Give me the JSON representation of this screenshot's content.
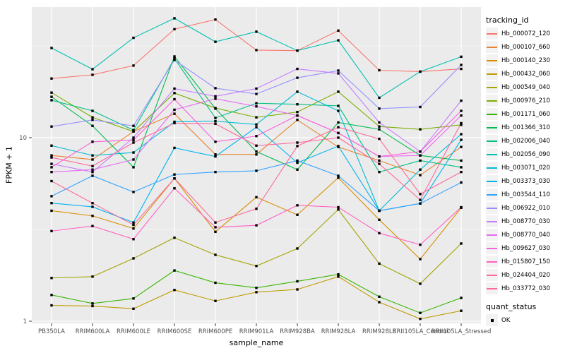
{
  "figure": {
    "background": "#FFFFFF",
    "panel_background": "#EBEBEB",
    "grid_color": "#FFFFFF",
    "tick_color": "#333333",
    "tick_label_color": "#4D4D4D",
    "point_color": "#000000"
  },
  "axes": {
    "x_title": "sample_name",
    "y_title": "FPKM + 1",
    "y_scale": "log10",
    "y_tick_labels": [
      "10",
      "1"
    ],
    "y_tick_values": [
      10,
      1
    ],
    "y_minor_values": [
      3.162,
      31.62
    ]
  },
  "legend": {
    "color_title": "tracking_id",
    "shape_title": "quant_status",
    "shape_items": [
      {
        "label": "OK"
      }
    ]
  },
  "chart_data": {
    "type": "line",
    "title": "",
    "xlabel": "sample_name",
    "ylabel": "FPKM + 1",
    "y_axis": {
      "scale": "log10",
      "ticks": [
        1,
        10
      ],
      "range_approx": [
        1,
        47
      ]
    },
    "grid": true,
    "legend_position": "right",
    "x_categories": [
      "PB350LA",
      "RRIM600LA",
      "RRIM600LE",
      "RRIM600SE",
      "RRIM600PE",
      "RRIM901LA",
      "RRIM928BA",
      "RRIM928LA",
      "RRIM928LE",
      "RRII105LA_Control",
      "RRII105LA_Stressed"
    ],
    "series": [
      {
        "name": "Hb_000072_120",
        "color": "#F8766D",
        "values": [
          21.0,
          22.0,
          24.7,
          39.0,
          44.0,
          30.0,
          29.8,
          38.3,
          23.3,
          22.9,
          23.7
        ]
      },
      {
        "name": "Hb_000107_660",
        "color": "#EA8331",
        "values": [
          8.0,
          7.6,
          10.8,
          13.5,
          8.1,
          8.1,
          12.5,
          8.9,
          7.5,
          6.25,
          8.9
        ]
      },
      {
        "name": "Hb_000140_230",
        "color": "#D89000",
        "values": [
          4.0,
          3.75,
          3.2,
          6.0,
          3.07,
          4.74,
          3.8,
          6.05,
          3.57,
          2.18,
          4.15
        ]
      },
      {
        "name": "Hb_000432_060",
        "color": "#C09B00",
        "values": [
          1.22,
          1.21,
          1.17,
          1.48,
          1.29,
          1.44,
          1.49,
          1.75,
          1.27,
          1.03,
          1.14
        ]
      },
      {
        "name": "Hb_000549_040",
        "color": "#A3A500",
        "values": [
          1.72,
          1.75,
          2.2,
          2.85,
          2.3,
          2.0,
          2.49,
          4.06,
          2.06,
          1.6,
          2.65
        ]
      },
      {
        "name": "Hb_000976_210",
        "color": "#7CAE00",
        "values": [
          17.6,
          12.9,
          10.8,
          17.5,
          14.5,
          12.9,
          13.8,
          17.8,
          11.5,
          11.1,
          11.75
        ]
      },
      {
        "name": "Hb_001171_060",
        "color": "#39B600",
        "values": [
          1.39,
          1.25,
          1.33,
          1.89,
          1.62,
          1.52,
          1.65,
          1.8,
          1.36,
          1.11,
          1.34
        ]
      },
      {
        "name": "Hb_001366_310",
        "color": "#00BB4E",
        "values": [
          16.7,
          11.6,
          6.9,
          27.7,
          14.4,
          8.4,
          6.7,
          12.1,
          11.1,
          8.0,
          7.5
        ]
      },
      {
        "name": "Hb_002006_040",
        "color": "#00C087",
        "values": [
          16.0,
          14.0,
          11.0,
          27.0,
          12.8,
          15.4,
          15.2,
          14.9,
          6.5,
          7.5,
          6.9
        ]
      },
      {
        "name": "Hb_002056_090",
        "color": "#00C0B2",
        "values": [
          30.8,
          23.6,
          35.0,
          44.7,
          33.3,
          37.8,
          29.8,
          33.9,
          16.5,
          22.9,
          27.6
        ]
      },
      {
        "name": "Hb_003071_020",
        "color": "#00BCD8",
        "values": [
          9.05,
          8.0,
          8.3,
          12.2,
          12.3,
          11.8,
          17.8,
          14.0,
          4.0,
          6.7,
          10.45
        ]
      },
      {
        "name": "Hb_003373_030",
        "color": "#00B4EF",
        "values": [
          4.4,
          4.2,
          3.45,
          8.8,
          7.9,
          11.4,
          7.3,
          9.0,
          4.0,
          4.38,
          9.73
        ]
      },
      {
        "name": "Hb_003544_110",
        "color": "#35A2FF",
        "values": [
          4.8,
          6.2,
          5.06,
          6.3,
          6.5,
          6.6,
          7.5,
          6.2,
          4.0,
          4.38,
          5.7
        ]
      },
      {
        "name": "Hb_006922_010",
        "color": "#9590FF",
        "values": [
          11.5,
          12.5,
          11.6,
          26.5,
          18.6,
          17.3,
          21.2,
          23.2,
          14.4,
          14.7,
          24.9
        ]
      },
      {
        "name": "Hb_008770_030",
        "color": "#C77CFF",
        "values": [
          7.2,
          6.5,
          10.0,
          18.5,
          16.8,
          18.5,
          23.7,
          22.4,
          12.1,
          8.4,
          15.9
        ]
      },
      {
        "name": "Hb_008770_040",
        "color": "#E76BF3",
        "values": [
          6.5,
          6.7,
          7.6,
          14.2,
          16.3,
          14.8,
          13.2,
          10.6,
          7.9,
          8.0,
          13.2
        ]
      },
      {
        "name": "Hb_009627_030",
        "color": "#FA62DB",
        "values": [
          6.9,
          9.5,
          9.7,
          16.2,
          9.5,
          10.2,
          13.2,
          10.6,
          7.9,
          8.4,
          14.0
        ]
      },
      {
        "name": "Hb_015807_150",
        "color": "#FF61C3",
        "values": [
          3.1,
          3.3,
          2.8,
          5.3,
          3.25,
          3.33,
          4.28,
          4.18,
          3.02,
          2.61,
          4.18
        ]
      },
      {
        "name": "Hb_024404_020",
        "color": "#FF6A98",
        "values": [
          5.8,
          4.4,
          3.35,
          6.0,
          3.45,
          4.1,
          9.0,
          11.4,
          9.85,
          4.93,
          6.5
        ]
      },
      {
        "name": "Hb_033772_030",
        "color": "#FF689F",
        "values": [
          7.8,
          7.0,
          9.4,
          12.0,
          11.9,
          9.05,
          9.4,
          10.0,
          7.2,
          4.58,
          12.0
        ]
      }
    ]
  }
}
